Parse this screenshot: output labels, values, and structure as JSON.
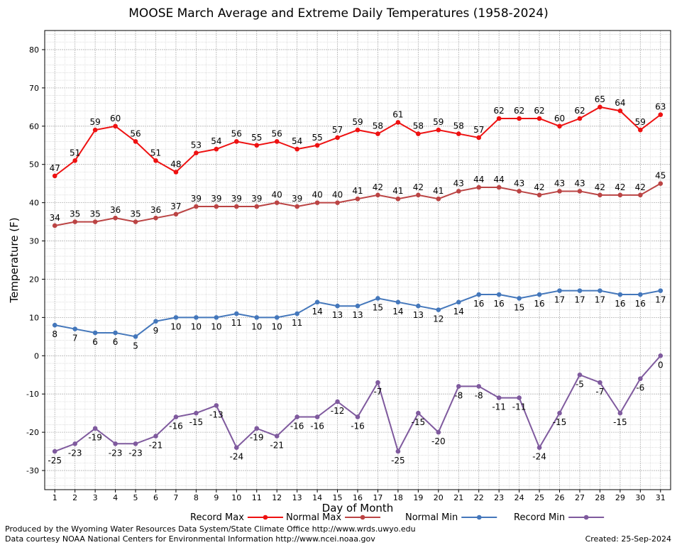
{
  "chart_data": {
    "type": "line",
    "title": "MOOSE March Average and Extreme Daily Temperatures (1958-2024)",
    "xlabel": "Day of Month",
    "ylabel": "Temperature (F)",
    "ylim": [
      -35,
      85
    ],
    "yticks": [
      -30,
      -20,
      -10,
      0,
      10,
      20,
      30,
      40,
      50,
      60,
      70,
      80
    ],
    "x": [
      1,
      2,
      3,
      4,
      5,
      6,
      7,
      8,
      9,
      10,
      11,
      12,
      13,
      14,
      15,
      16,
      17,
      18,
      19,
      20,
      21,
      22,
      23,
      24,
      25,
      26,
      27,
      28,
      29,
      30,
      31
    ],
    "grid": true,
    "legend_position": "bottom",
    "series": [
      {
        "name": "Record Max",
        "color": "#ee1111",
        "label_side": "above",
        "values": [
          47,
          51,
          59,
          60,
          56,
          51,
          48,
          53,
          54,
          56,
          55,
          56,
          54,
          55,
          57,
          59,
          58,
          61,
          58,
          59,
          58,
          57,
          62,
          62,
          62,
          60,
          62,
          65,
          64,
          59,
          63
        ]
      },
      {
        "name": "Normal Max",
        "color": "#bb4444",
        "label_side": "above",
        "values": [
          34,
          35,
          35,
          36,
          35,
          36,
          37,
          39,
          39,
          39,
          39,
          40,
          39,
          40,
          40,
          41,
          42,
          41,
          42,
          41,
          43,
          44,
          44,
          43,
          42,
          43,
          43,
          42,
          42,
          42,
          45
        ]
      },
      {
        "name": "Normal Min",
        "color": "#4477bb",
        "label_side": "below",
        "values": [
          8,
          7,
          6,
          6,
          5,
          9,
          10,
          10,
          10,
          11,
          10,
          10,
          11,
          14,
          13,
          13,
          15,
          14,
          13,
          12,
          14,
          16,
          16,
          15,
          16,
          17,
          17,
          17,
          16,
          16,
          17
        ]
      },
      {
        "name": "Record Min",
        "color": "#7f5a9e",
        "label_side": "below",
        "values": [
          -25,
          -23,
          -19,
          -23,
          -23,
          -21,
          -16,
          -15,
          -13,
          -24,
          -19,
          -21,
          -16,
          -16,
          -12,
          -16,
          -7,
          -25,
          -15,
          -20,
          -8,
          -8,
          -11,
          -11,
          -24,
          -15,
          -5,
          -7,
          -15,
          -6,
          0
        ]
      }
    ]
  },
  "footer": {
    "line1": "Produced by the Wyoming Water Resources Data System/State Climate Office http://www.wrds.uwyo.edu",
    "line2": "Data courtesy NOAA National Centers for Environmental Information http://www.ncei.noaa.gov",
    "created": "Created:  25-Sep-2024"
  }
}
